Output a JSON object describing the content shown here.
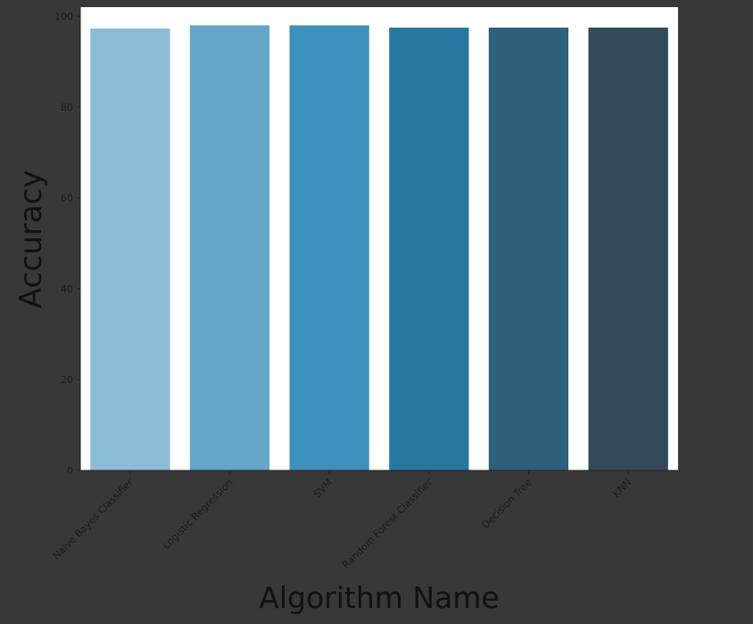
{
  "chart_data": {
    "type": "bar",
    "title": "",
    "xlabel": "Algorithm Name",
    "ylabel": "Accuracy",
    "categories": [
      "Naive Bayes Classifier",
      "Logistic Regression",
      "SVM",
      "Random Forest Classifier",
      "Decision Tree",
      "KNN"
    ],
    "values": [
      97.3,
      98.0,
      98.0,
      97.5,
      97.5,
      97.5
    ],
    "ylim": [
      0,
      102
    ],
    "yticks": [
      0,
      20,
      40,
      60,
      80,
      100
    ],
    "grid": false,
    "legend": "none",
    "colors": [
      "#8bbcd6",
      "#64a5c8",
      "#3d90bb",
      "#2877a1",
      "#2d6079",
      "#324a59"
    ],
    "plot_background": "#ffffff",
    "figure_background": "#383838"
  }
}
